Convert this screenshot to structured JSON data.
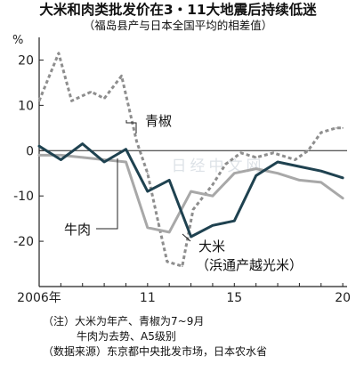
{
  "header": {
    "title": "大米和肉类批发价在3・11大地震后持续低迷",
    "subtitle": "（福岛县产与日本全国平均的相差值）"
  },
  "watermark": "日经中文网",
  "chart_data": {
    "type": "line",
    "title": "大米和肉类批发价在3・11大地震后持续低迷",
    "subtitle": "（福岛县产与日本全国平均的相差值）",
    "unit": "%",
    "xlabel": "",
    "ylabel": "%",
    "ylim": [
      -30,
      25
    ],
    "xlim": [
      2006,
      2020.2
    ],
    "y_ticks": [
      20,
      10,
      0,
      -10,
      -20
    ],
    "y_tick_labels": [
      "20",
      "10",
      "0",
      "-10",
      "-20"
    ],
    "x_ticks": [
      2006,
      2011,
      2015,
      2020
    ],
    "x_tick_labels": [
      "2006年",
      "11",
      "15",
      "20"
    ],
    "grid": false,
    "zero_line": true,
    "series": [
      {
        "name": "大米（浜通产越光米）",
        "label_lines": [
          "大米",
          "（浜通产越光米）"
        ],
        "color": "#1f4250",
        "style": "solid",
        "x": [
          2006,
          2007,
          2008,
          2009,
          2010,
          2011,
          2012,
          2013,
          2014,
          2015,
          2016,
          2017,
          2018,
          2019,
          2020
        ],
        "y": [
          1,
          -2,
          1.5,
          -2.5,
          0.3,
          -9,
          -6.5,
          -19,
          -16.5,
          -15.5,
          -5.5,
          -2.5,
          -3.5,
          -4.5,
          -6
        ]
      },
      {
        "name": "青椒",
        "label_lines": [
          "青椒"
        ],
        "color": "#8e8e8e",
        "style": "dotted",
        "x": [
          2006,
          2006.9,
          2007.5,
          2008.4,
          2009,
          2009.8,
          2010.5,
          2011,
          2011.5,
          2011.9,
          2012.6,
          2013.1,
          2014,
          2014.6,
          2015.3,
          2016,
          2016.8,
          2017.8,
          2018.4,
          2019,
          2019.7,
          2020
        ],
        "y": [
          11,
          21.5,
          11,
          13,
          11.5,
          16.5,
          2,
          -5,
          -16,
          -24.5,
          -25.5,
          -13,
          -7.5,
          -3,
          -0.5,
          -1.5,
          -0.5,
          -2,
          0,
          4,
          5,
          5
        ]
      },
      {
        "name": "牛肉",
        "label_lines": [
          "牛肉"
        ],
        "color": "#a8a8a8",
        "style": "solid",
        "x": [
          2006,
          2007,
          2008,
          2009,
          2010,
          2011,
          2012,
          2013,
          2014,
          2015,
          2016,
          2017,
          2018,
          2019,
          2020
        ],
        "y": [
          -1,
          -1,
          -1.5,
          -2,
          -2.5,
          -17,
          -18,
          -9,
          -10,
          -5,
          -4,
          -5,
          -6.5,
          -7,
          -10.5
        ]
      }
    ]
  },
  "notes": {
    "line1": "（注）大米为年产、青椒为7~9月",
    "line2": "牛肉为去势、A5级别",
    "line3": "（数据来源）东京都中央批发市场，日本农水省"
  }
}
